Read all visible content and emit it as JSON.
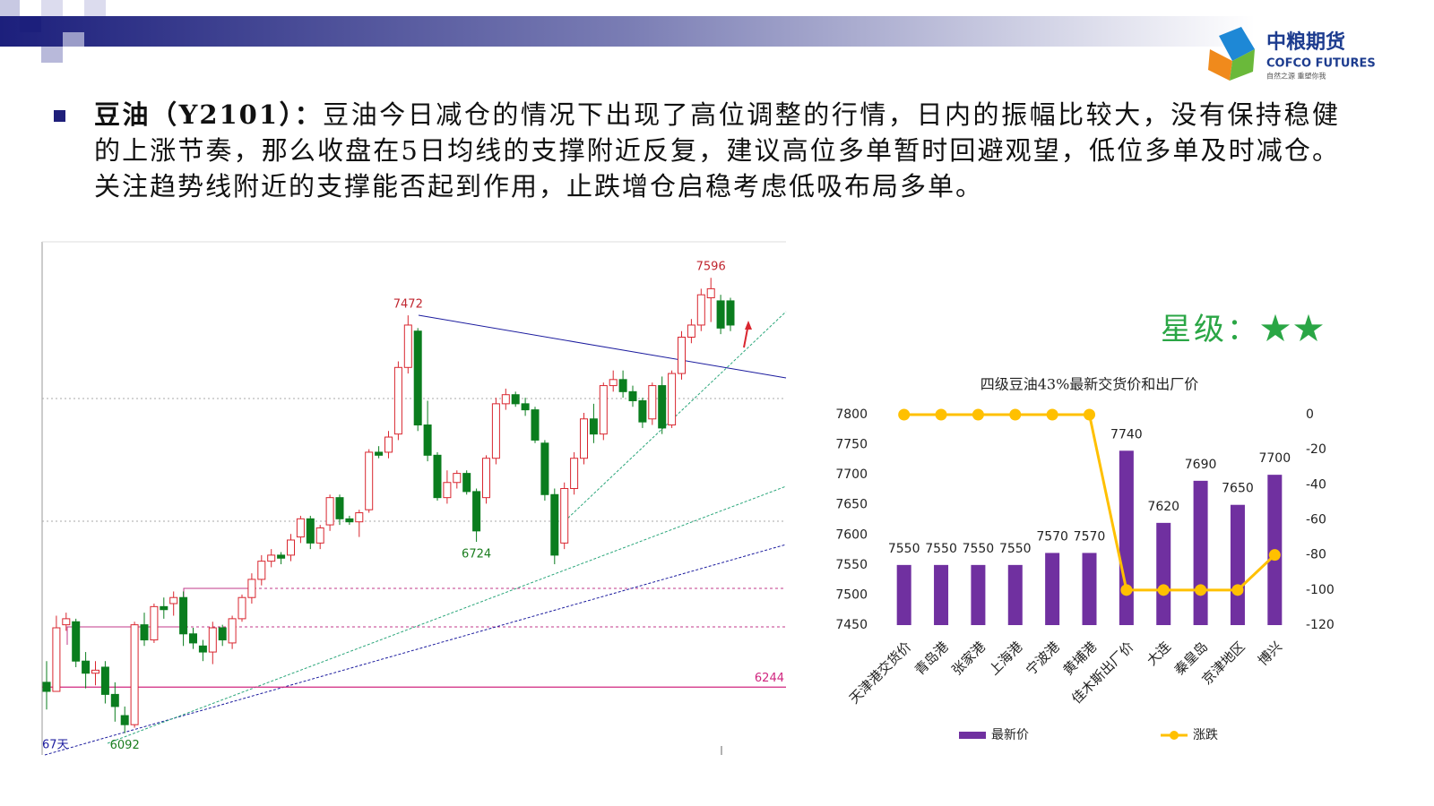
{
  "header": {
    "logo_cn": "中粮期货",
    "logo_en": "COFCO FUTURES",
    "logo_slogan": "自然之源 重塑你我"
  },
  "commentary": {
    "lead": "豆油（Y2101）：",
    "text": "豆油今日减仓的情况下出现了高位调整的行情，日内的振幅比较大，没有保持稳健的上涨节奏，那么收盘在5日均线的支撑附近反复，建议高位多单暂时回避观望，低位多单及时减仓。关注趋势线附近的支撑能否起到作用，止跌增仓启稳考虑低吸布局多单。"
  },
  "rating": "星级：★★",
  "chart_data": [
    {
      "type": "candlestick",
      "up_color": "#d9262f",
      "down_color": "#0a7d1e",
      "ylim": [
        6020,
        7715
      ],
      "candles": [
        [
          6260,
          6330,
          6170,
          6230
        ],
        [
          6230,
          6480,
          6230,
          6440
        ],
        [
          6450,
          6490,
          6430,
          6470
        ],
        [
          6460,
          6470,
          6310,
          6330
        ],
        [
          6330,
          6360,
          6240,
          6290
        ],
        [
          6290,
          6330,
          6250,
          6300
        ],
        [
          6310,
          6330,
          6190,
          6220
        ],
        [
          6220,
          6260,
          6130,
          6180
        ],
        [
          6150,
          6180,
          6092,
          6120
        ],
        [
          6120,
          6460,
          6110,
          6450
        ],
        [
          6450,
          6490,
          6380,
          6400
        ],
        [
          6400,
          6520,
          6390,
          6510
        ],
        [
          6510,
          6540,
          6470,
          6500
        ],
        [
          6520,
          6560,
          6480,
          6540
        ],
        [
          6540,
          6560,
          6380,
          6420
        ],
        [
          6420,
          6440,
          6370,
          6390
        ],
        [
          6380,
          6400,
          6330,
          6360
        ],
        [
          6360,
          6460,
          6320,
          6440
        ],
        [
          6440,
          6450,
          6380,
          6400
        ],
        [
          6390,
          6480,
          6370,
          6470
        ],
        [
          6470,
          6550,
          6460,
          6540
        ],
        [
          6540,
          6620,
          6520,
          6600
        ],
        [
          6600,
          6680,
          6580,
          6660
        ],
        [
          6660,
          6700,
          6640,
          6680
        ],
        [
          6680,
          6690,
          6650,
          6670
        ],
        [
          6680,
          6750,
          6660,
          6730
        ],
        [
          6740,
          6810,
          6720,
          6800
        ],
        [
          6800,
          6810,
          6700,
          6720
        ],
        [
          6720,
          6780,
          6700,
          6770
        ],
        [
          6780,
          6880,
          6760,
          6870
        ],
        [
          6870,
          6880,
          6780,
          6800
        ],
        [
          6800,
          6810,
          6780,
          6790
        ],
        [
          6790,
          6830,
          6740,
          6820
        ],
        [
          6830,
          7030,
          6820,
          7020
        ],
        [
          7020,
          7040,
          7000,
          7010
        ],
        [
          7020,
          7090,
          7000,
          7070
        ],
        [
          7080,
          7320,
          7060,
          7300
        ],
        [
          7300,
          7472,
          7280,
          7440
        ],
        [
          7420,
          7430,
          7090,
          7110
        ],
        [
          7110,
          7190,
          6990,
          7010
        ],
        [
          7010,
          7020,
          6860,
          6870
        ],
        [
          6870,
          6960,
          6850,
          6920
        ],
        [
          6920,
          6960,
          6900,
          6950
        ],
        [
          6950,
          6960,
          6880,
          6890
        ],
        [
          6890,
          6900,
          6724,
          6760
        ],
        [
          6870,
          7010,
          6850,
          7000
        ],
        [
          7000,
          7200,
          6980,
          7180
        ],
        [
          7180,
          7230,
          7160,
          7210
        ],
        [
          7210,
          7220,
          7170,
          7180
        ],
        [
          7180,
          7200,
          7140,
          7160
        ],
        [
          7160,
          7170,
          7050,
          7060
        ],
        [
          7050,
          7060,
          6860,
          6880
        ],
        [
          6880,
          6900,
          6650,
          6680
        ],
        [
          6720,
          6920,
          6700,
          6900
        ],
        [
          6900,
          7020,
          6880,
          7000
        ],
        [
          7000,
          7150,
          6980,
          7130
        ],
        [
          7130,
          7180,
          7050,
          7080
        ],
        [
          7080,
          7250,
          7060,
          7240
        ],
        [
          7240,
          7290,
          7220,
          7260
        ],
        [
          7260,
          7290,
          7200,
          7220
        ],
        [
          7220,
          7240,
          7170,
          7190
        ],
        [
          7190,
          7200,
          7100,
          7120
        ],
        [
          7130,
          7250,
          7110,
          7240
        ],
        [
          7240,
          7270,
          7080,
          7100
        ],
        [
          7110,
          7290,
          7100,
          7280
        ],
        [
          7280,
          7420,
          7260,
          7400
        ],
        [
          7400,
          7460,
          7380,
          7440
        ],
        [
          7440,
          7560,
          7420,
          7540
        ],
        [
          7530,
          7596,
          7450,
          7560
        ],
        [
          7520,
          7540,
          7410,
          7430
        ],
        [
          7520,
          7530,
          7420,
          7440
        ]
      ],
      "annotations": [
        7596,
        7472,
        6724,
        6092
      ],
      "levels": [
        6244
      ],
      "period_label": "67天"
    },
    {
      "type": "bar-line",
      "title": "四级豆油43%最新交货价和出厂价",
      "categories": [
        "天津港交货价",
        "青岛港",
        "张家港",
        "上海港",
        "宁波港",
        "黄埔港",
        "佳木斯出厂价",
        "大连",
        "秦皇岛",
        "京津地区",
        "博兴"
      ],
      "series": [
        {
          "name": "最新价",
          "type": "bar",
          "color": "#7030a0",
          "values": [
            7550,
            7550,
            7550,
            7550,
            7570,
            7570,
            7740,
            7620,
            7690,
            7650,
            7700
          ]
        },
        {
          "name": "涨跌",
          "type": "line",
          "axis": "y2",
          "color": "#ffc000",
          "values": [
            0,
            0,
            0,
            0,
            0,
            0,
            -100,
            -100,
            -100,
            -100,
            -80
          ]
        }
      ],
      "ylim": [
        7450,
        7800
      ],
      "yticks": [
        7450,
        7500,
        7550,
        7600,
        7650,
        7700,
        7750,
        7800
      ],
      "y2lim": [
        -120,
        0
      ],
      "y2ticks": [
        0,
        -20,
        -40,
        -60,
        -80,
        -100,
        -120
      ]
    }
  ]
}
